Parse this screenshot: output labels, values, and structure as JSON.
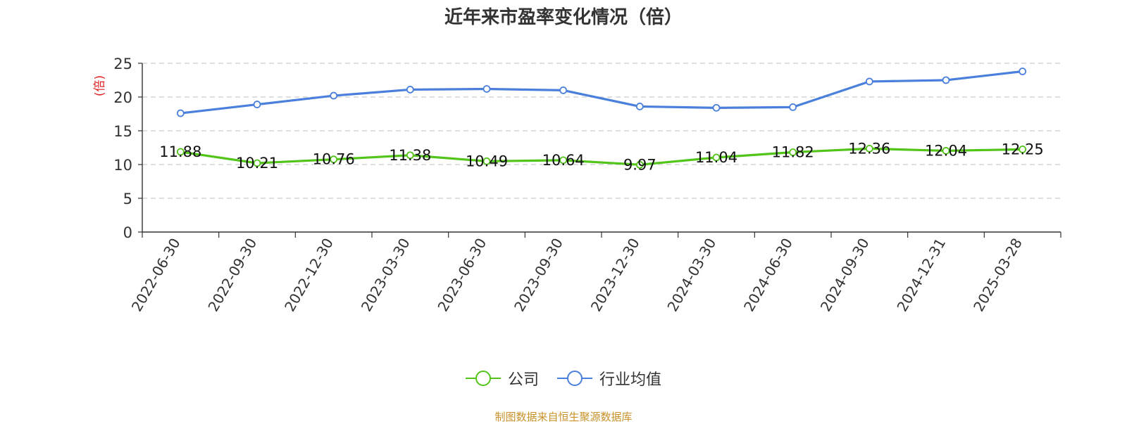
{
  "chart_data": {
    "type": "line",
    "title": "近年来市盈率变化情况（倍）",
    "ylabel": "(倍)",
    "ylim": [
      0,
      25
    ],
    "yticks": [
      0,
      5,
      10,
      15,
      20,
      25
    ],
    "grid": true,
    "legend_position": "bottom",
    "categories": [
      "2022-06-30",
      "2022-09-30",
      "2022-12-30",
      "2023-03-30",
      "2023-06-30",
      "2023-09-30",
      "2023-12-30",
      "2024-03-30",
      "2024-06-30",
      "2024-09-30",
      "2024-12-31",
      "2025-03-28"
    ],
    "series": [
      {
        "name": "公司",
        "color": "#52c41a",
        "show_labels": true,
        "values": [
          11.88,
          10.21,
          10.76,
          11.38,
          10.49,
          10.64,
          9.97,
          11.04,
          11.82,
          12.36,
          12.04,
          12.25
        ],
        "labels": [
          "11.88",
          "10.21",
          "10.76",
          "11.38",
          "10.49",
          "10.64",
          "9.97",
          "11.04",
          "11.82",
          "12.36",
          "12.04",
          "12.25"
        ]
      },
      {
        "name": "行业均值",
        "color": "#4a7fdc",
        "show_labels": false,
        "values": [
          17.6,
          18.9,
          20.2,
          21.1,
          21.2,
          21.0,
          18.6,
          18.4,
          18.5,
          22.3,
          22.5,
          23.8
        ]
      }
    ],
    "source": "制图数据来自恒生聚源数据库",
    "source_color": "#c8922a",
    "ylabel_color": "#e02020"
  }
}
